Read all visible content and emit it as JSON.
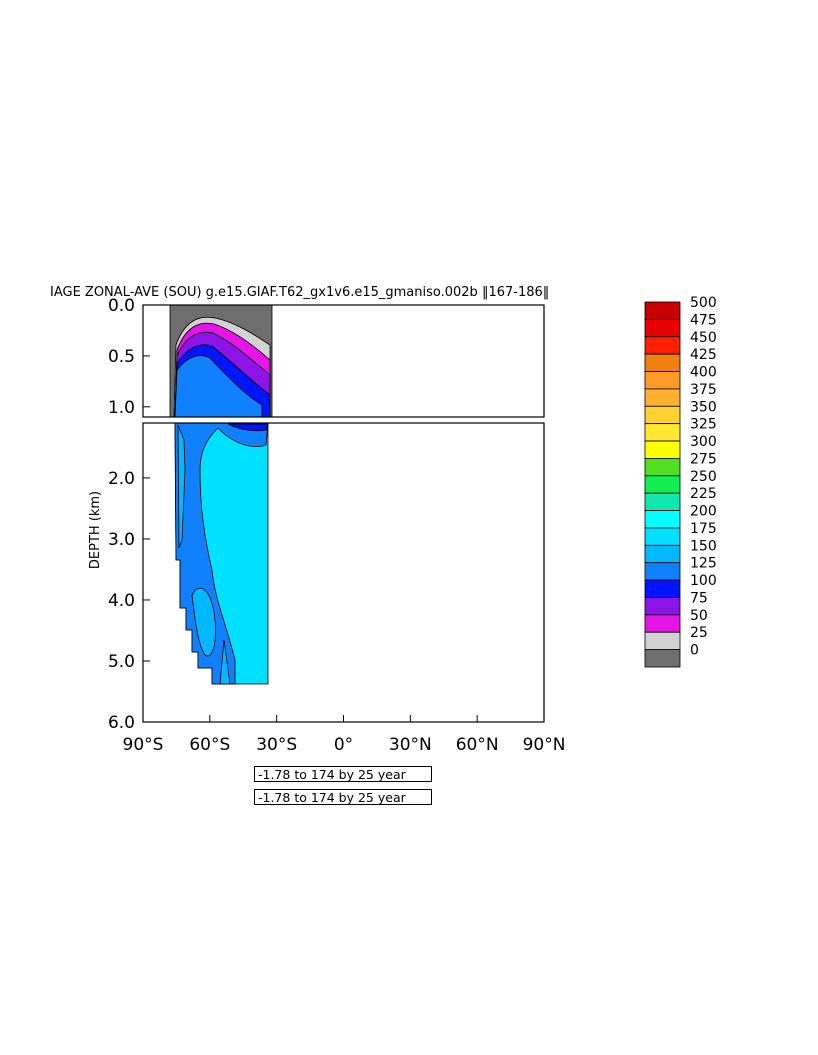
{
  "chart_data": {
    "type": "heatmap",
    "title": "IAGE ZONAL-AVE (SOU) g.e15.GIAF.T62_gx1v6.e15_gmaniso.002b ‖167-186‖",
    "ylabel": "DEPTH (km)",
    "xlabel": "",
    "x_ticks": [
      "90°S",
      "60°S",
      "30°S",
      "0°",
      "30°N",
      "60°N",
      "90°N"
    ],
    "x_tick_values": [
      -90,
      -60,
      -30,
      0,
      30,
      60,
      90
    ],
    "xlim": [
      -90,
      90
    ],
    "upper_panel": {
      "ylim": [
        0.0,
        1.1
      ],
      "y_ticks": [
        "0.0",
        "0.5",
        "1.0"
      ],
      "y_tick_values": [
        0.0,
        0.5,
        1.0
      ]
    },
    "lower_panel": {
      "ylim": [
        1.1,
        6.0
      ],
      "y_ticks": [
        "2.0",
        "3.0",
        "4.0",
        "5.0",
        "6.0"
      ],
      "y_tick_values": [
        2.0,
        3.0,
        4.0,
        5.0,
        6.0
      ]
    },
    "colorbar": {
      "levels": [
        "500",
        "475",
        "450",
        "425",
        "400",
        "375",
        "350",
        "325",
        "300",
        "275",
        "250",
        "225",
        "200",
        "175",
        "150",
        "125",
        "100",
        "75",
        "50",
        "25",
        "0"
      ],
      "colors": [
        "#c80000",
        "#e60000",
        "#ff2000",
        "#f08010",
        "#ff9a2a",
        "#ffb030",
        "#ffd230",
        "#ffe830",
        "#ffff00",
        "#50e020",
        "#10f050",
        "#10e8b0",
        "#00ffff",
        "#00e0ff",
        "#00b8ff",
        "#1080ff",
        "#0014ff",
        "#8c14e6",
        "#e614e6",
        "#d2d2d2",
        "#6e6e6e"
      ]
    },
    "data_region": {
      "lat_range": [
        -78,
        -34
      ],
      "depth_max_km": 5.35
    },
    "contour_notes": [
      "-1.78 to 174 by 25 year",
      "-1.78 to 174 by 25 year"
    ]
  }
}
